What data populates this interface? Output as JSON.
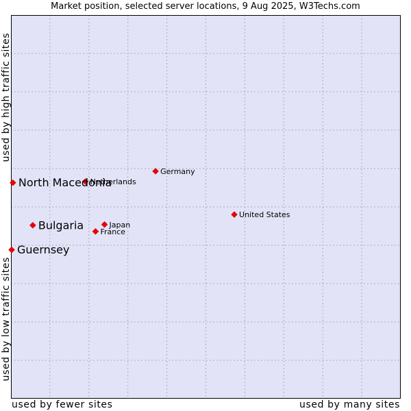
{
  "chart_data": {
    "type": "scatter",
    "title": "Market position, selected server locations, 9 Aug 2025, W3Techs.com",
    "xlabel_left": "used by fewer sites",
    "xlabel_right": "used by many sites",
    "ylabel_top": "used by high traffic sites",
    "ylabel_bottom": "used by low traffic sites",
    "xlim": [
      0,
      100
    ],
    "ylim": [
      0,
      100
    ],
    "grid": true,
    "points": [
      {
        "label": "Germany",
        "x": 37.1,
        "y": 59.3,
        "highlight": false
      },
      {
        "label": "Netherlands",
        "x": 19.1,
        "y": 56.6,
        "highlight": false
      },
      {
        "label": "North Macedonia",
        "x": 0.5,
        "y": 56.3,
        "highlight": true
      },
      {
        "label": "United States",
        "x": 57.3,
        "y": 48.0,
        "highlight": false
      },
      {
        "label": "Japan",
        "x": 24.0,
        "y": 45.4,
        "highlight": false
      },
      {
        "label": "Bulgaria",
        "x": 5.6,
        "y": 45.2,
        "highlight": true
      },
      {
        "label": "France",
        "x": 21.7,
        "y": 43.6,
        "highlight": false
      },
      {
        "label": "Guernsey",
        "x": 0.0,
        "y": 38.8,
        "highlight": true
      }
    ]
  },
  "colors": {
    "plot_background": "#e3e3f8",
    "grid": "#a8a8c0",
    "border": "#000000",
    "marker": "#ee0000"
  }
}
